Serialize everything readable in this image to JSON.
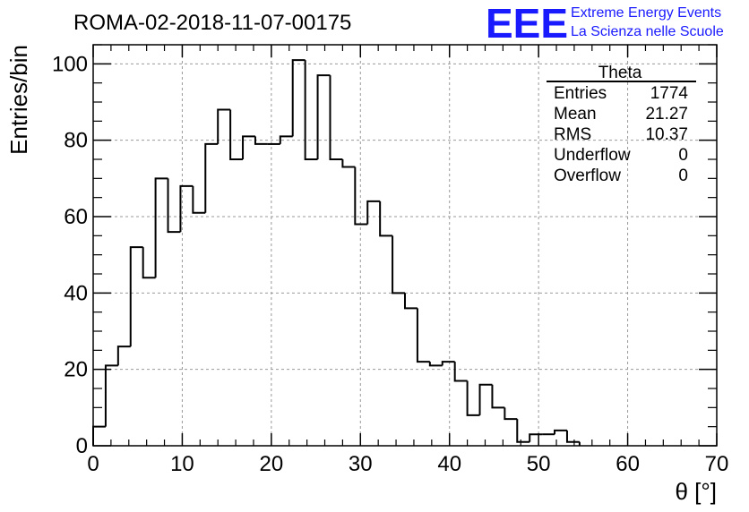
{
  "run_title": "ROMA-02-2018-11-07-00175",
  "logo": {
    "letters": "EEE",
    "line1": "Extreme Energy Events",
    "line2": "La Scienza nelle Scuole",
    "color": "#1a1aff"
  },
  "stats": {
    "title": "Theta",
    "rows": [
      {
        "label": "Entries",
        "value": "1774"
      },
      {
        "label": "Mean",
        "value": "21.27"
      },
      {
        "label": "RMS",
        "value": "10.37"
      },
      {
        "label": "Underflow",
        "value": "0"
      },
      {
        "label": "Overflow",
        "value": "0"
      }
    ]
  },
  "chart_data": {
    "type": "bar",
    "histogram": true,
    "title": "ROMA-02-2018-11-07-00175",
    "xlabel": "θ [°]",
    "ylabel": "Entries/bin",
    "xlim": [
      0,
      70
    ],
    "ylim": [
      0,
      105
    ],
    "grid": true,
    "bin_width": 1.4,
    "bin_edges_start": 0,
    "values": [
      5,
      21,
      26,
      52,
      44,
      70,
      56,
      68,
      61,
      79,
      88,
      75,
      81,
      79,
      79,
      81,
      101,
      75,
      97,
      75,
      73,
      58,
      64,
      55,
      40,
      36,
      22,
      21,
      22,
      17,
      8,
      16,
      10,
      7,
      1,
      3,
      3,
      4,
      1
    ],
    "x_ticks": [
      "0",
      "10",
      "20",
      "30",
      "40",
      "50",
      "60",
      "70"
    ],
    "y_ticks": [
      "0",
      "20",
      "40",
      "60",
      "80",
      "100"
    ]
  }
}
